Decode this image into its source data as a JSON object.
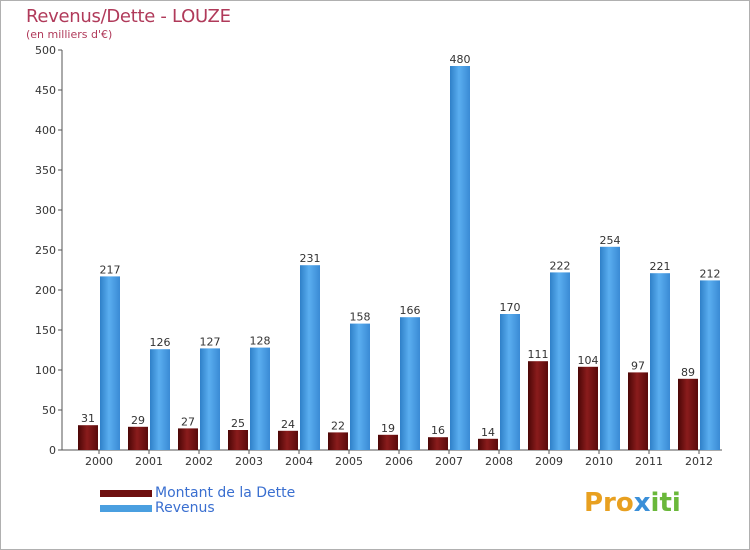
{
  "title": "Revenus/Dette - LOUZE",
  "subtitle": "(en milliers d'€)",
  "logo": {
    "part1": "Pro",
    "part2": "x",
    "part3": "iti"
  },
  "colors": {
    "debt": "#6e0f0f",
    "revenue": "#4a9fe0",
    "title": "#b03a5a",
    "legend_text": "#3a6fd0"
  },
  "chart_data": {
    "type": "bar",
    "categories": [
      "2000",
      "2001",
      "2002",
      "2003",
      "2004",
      "2005",
      "2006",
      "2007",
      "2008",
      "2009",
      "2010",
      "2011",
      "2012"
    ],
    "series": [
      {
        "name": "Montant de la Dette",
        "values": [
          31,
          29,
          27,
          25,
          24,
          22,
          19,
          16,
          14,
          111,
          104,
          97,
          89
        ]
      },
      {
        "name": "Revenus",
        "values": [
          217,
          126,
          127,
          128,
          231,
          158,
          166,
          480,
          170,
          222,
          254,
          221,
          212
        ]
      }
    ],
    "ylim": [
      0,
      500
    ],
    "yticks": [
      0,
      50,
      100,
      150,
      200,
      250,
      300,
      350,
      400,
      450,
      500
    ],
    "grid": false,
    "legend": "bottom-left"
  }
}
